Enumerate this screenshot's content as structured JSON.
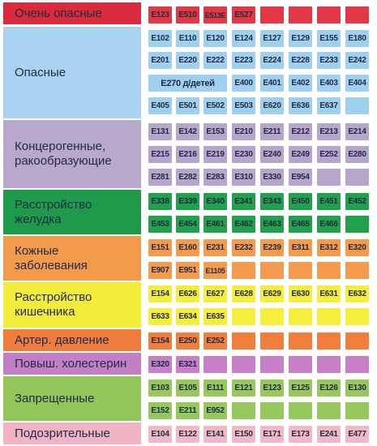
{
  "categories": [
    {
      "id": "very-dangerous",
      "label": "Очень опасные",
      "color": "#d92b3c",
      "cellColor": "#e23744",
      "rows": [
        [
          "E123",
          "E510",
          "E513E",
          "E527",
          "",
          "",
          "",
          ""
        ]
      ]
    },
    {
      "id": "dangerous",
      "label": "Опасные",
      "color": "#a9d3f1",
      "cellColor": "#9fd0f0",
      "rows": [
        [
          "E102",
          "E110",
          "E120",
          "E124",
          "E127",
          "E129",
          "E155",
          "E180"
        ],
        [
          "E201",
          "E220",
          "E222",
          "E223",
          "E224",
          "E228",
          "E233",
          "E242"
        ],
        [
          "E270 д/детей",
          "E400",
          "E401",
          "E402",
          "E403",
          "E404"
        ],
        [
          "E405",
          "E501",
          "E502",
          "E503",
          "E620",
          "E636",
          "E637",
          ""
        ]
      ]
    },
    {
      "id": "carcinogenic",
      "label": "Концерогенные,\nракообразующие",
      "color": "#b8a8cc",
      "cellColor": "#b7a6cc",
      "rows": [
        [
          "E131",
          "E142",
          "E153",
          "E210",
          "E211",
          "E212",
          "E213",
          "E214"
        ],
        [
          "E215",
          "E216",
          "E219",
          "E230",
          "E240",
          "E249",
          "E252",
          "E280"
        ],
        [
          "E281",
          "E282",
          "E283",
          "E310",
          "E330",
          "E954",
          "",
          ""
        ]
      ]
    },
    {
      "id": "stomach",
      "label": "Расстройство\nжелудка",
      "color": "#1f9a4a",
      "cellColor": "#21a04e",
      "rows": [
        [
          "E338",
          "E339",
          "E340",
          "E341",
          "E343",
          "E450",
          "E451",
          "E452"
        ],
        [
          "E453",
          "E454",
          "E461",
          "E462",
          "E463",
          "E465",
          "E466",
          ""
        ]
      ]
    },
    {
      "id": "skin",
      "label": "Кожные\nзаболевания",
      "color": "#f49a4c",
      "cellColor": "#f59b4d",
      "rows": [
        [
          "E151",
          "E160",
          "E231",
          "E232",
          "E239",
          "E311",
          "E312",
          "E320"
        ],
        [
          "E907",
          "E951",
          "E1105",
          "",
          "",
          "",
          "",
          ""
        ]
      ]
    },
    {
      "id": "intestine",
      "label": "Расстройство\nкишечника",
      "color": "#f3ec3b",
      "cellColor": "#f5ee3a",
      "rows": [
        [
          "E154",
          "E626",
          "E627",
          "E628",
          "E629",
          "E630",
          "E631",
          "E632"
        ],
        [
          "E633",
          "E634",
          "E635",
          "",
          "",
          "",
          "",
          ""
        ]
      ]
    },
    {
      "id": "pressure",
      "label": "Артер. давление",
      "color": "#ef7d3c",
      "cellColor": "#f07e3d",
      "rows": [
        [
          "E154",
          "E250",
          "E252",
          "",
          "",
          "",
          "",
          ""
        ]
      ]
    },
    {
      "id": "cholesterol",
      "label": "Повыш. холестерин",
      "color": "#c27fc6",
      "cellColor": "#c77fc8",
      "rows": [
        [
          "E320",
          "E321",
          "",
          "",
          "",
          "",
          "",
          ""
        ]
      ]
    },
    {
      "id": "banned",
      "label": "Запрещенные",
      "color": "#93c65a",
      "cellColor": "#97c85e",
      "rows": [
        [
          "E103",
          "E105",
          "E111",
          "E121",
          "E123",
          "E125",
          "E126",
          "E130"
        ],
        [
          "E152",
          "E211",
          "E952",
          "",
          "",
          "",
          "",
          ""
        ]
      ]
    },
    {
      "id": "suspicious",
      "label": "Подозрительные",
      "color": "#f1b4c5",
      "cellColor": "#f3b8c8",
      "rows": [
        [
          "E104",
          "E122",
          "E141",
          "E150",
          "E171",
          "E173",
          "E241",
          "E477"
        ]
      ]
    }
  ]
}
